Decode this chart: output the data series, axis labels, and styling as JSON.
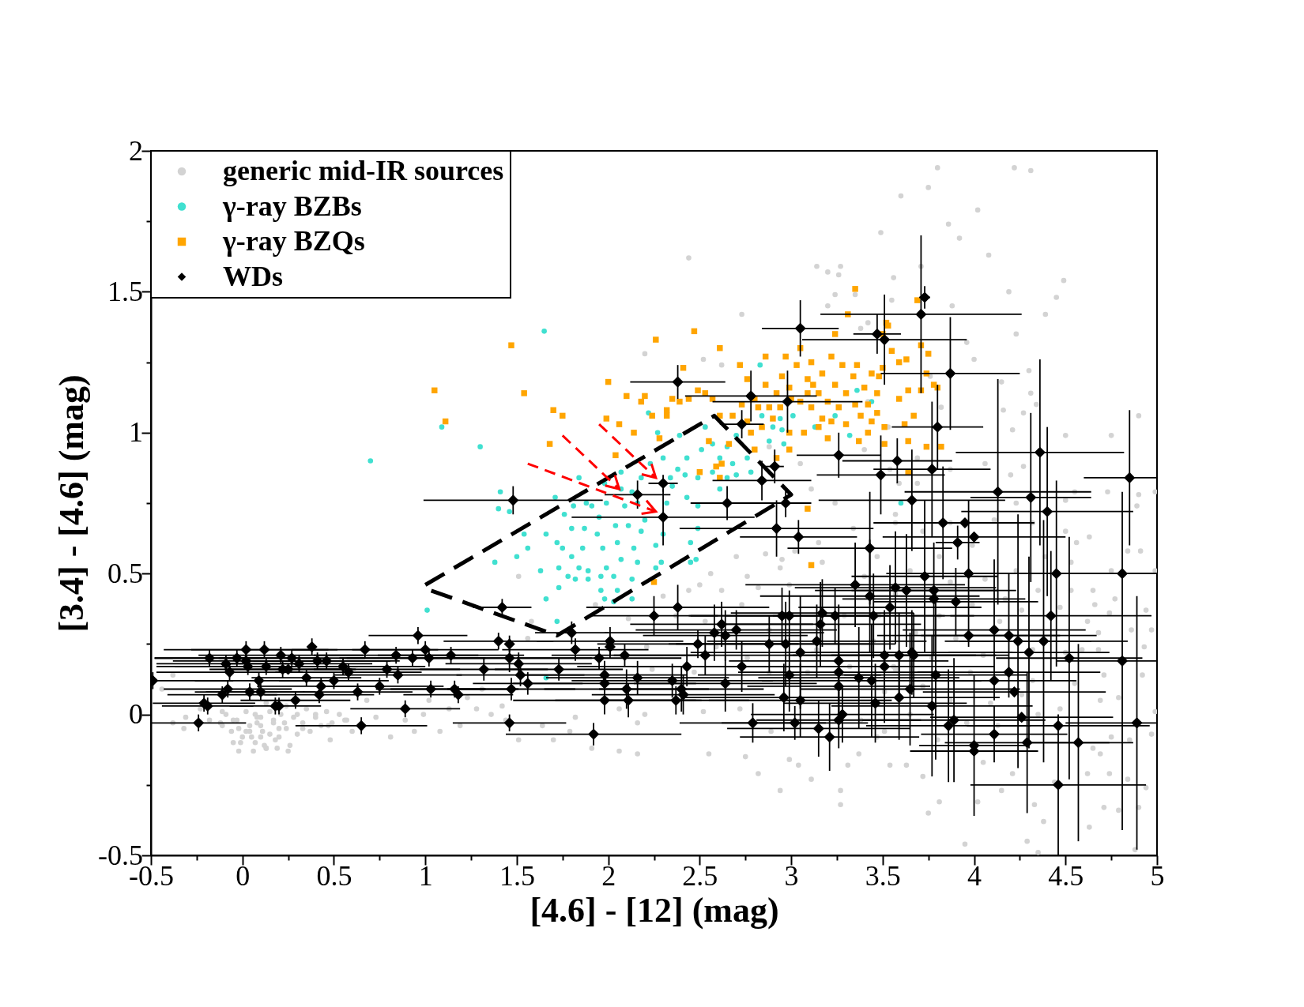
{
  "chart_data": {
    "type": "scatter",
    "xlabel": "[4.6] - [12] (mag)",
    "ylabel": "[3.4] - [4.6] (mag)",
    "xlim": [
      -0.5,
      5
    ],
    "ylim": [
      -0.5,
      2
    ],
    "xticks": [
      -0.5,
      {
        "value": -0.25,
        "label": null
      },
      0,
      {
        "value": 0.25,
        "label": null
      },
      0.5,
      {
        "value": 0.75,
        "label": null
      },
      1,
      {
        "value": 1.25,
        "label": null
      },
      1.5,
      {
        "value": 1.75,
        "label": null
      },
      2,
      {
        "value": 2.25,
        "label": null
      },
      2.5,
      {
        "value": 2.75,
        "label": null
      },
      3,
      {
        "value": 3.25,
        "label": null
      },
      3.5,
      {
        "value": 3.75,
        "label": null
      },
      4,
      {
        "value": 4.25,
        "label": null
      },
      4.5,
      {
        "value": 4.75,
        "label": null
      },
      5
    ],
    "yticks": [
      -0.5,
      {
        "value": -0.25,
        "label": null
      },
      0,
      {
        "value": 0.25,
        "label": null
      },
      0.5,
      {
        "value": 0.75,
        "label": null
      },
      1,
      {
        "value": 1.25,
        "label": null
      },
      1.5,
      {
        "value": 1.75,
        "label": null
      },
      2
    ],
    "legend": "top left",
    "series": [
      {
        "name": "generic mid-IR sources",
        "color": "#d3d3d3",
        "marker": "circle",
        "x": [
          3.8,
          4.22,
          4.31,
          3.75,
          3.6,
          4.02,
          3.86,
          3.49,
          3.92,
          4.49,
          4.45,
          3.71,
          3.56,
          3.55,
          3.88,
          4.23,
          3.96,
          4.0,
          4.3,
          4.15,
          4.31,
          4.34,
          4.9,
          4.16,
          4.27,
          4.21,
          4.75,
          4.5,
          4.73,
          4.9,
          4.99,
          4.89,
          4.63,
          4.55,
          4.5,
          4.39,
          4.19,
          4.08,
          3.26,
          2.44,
          3.14,
          3.35,
          3.42,
          2.73,
          2.2,
          2.52,
          2.62,
          3.2,
          3.27,
          3.24,
          3.2,
          3.38,
          2.7,
          2.86,
          3.02,
          3.17,
          2.56,
          2.76,
          2.94,
          2.44,
          2.62,
          2.82,
          2.99,
          2.3,
          2.5,
          2.37,
          2.73,
          1.93,
          2.11,
          2.53,
          2.88,
          3.29,
          2.21,
          2.59,
          2.76,
          3.14,
          3.45,
          2.24,
          2.47,
          2.88,
          3.09,
          3.32,
          3.57,
          2.06,
          2.2,
          2.52,
          2.72,
          2.89,
          3.38,
          3.47,
          2.06,
          2.16,
          2.55,
          2.75,
          2.99,
          3.04,
          3.37,
          3.54,
          3.63,
          2.82,
          3.11,
          2.94,
          3.27,
          3.27,
          3.31,
          4.91,
          4.84,
          4.56,
          4.99,
          4.75,
          4.65,
          4.77,
          4.66,
          4.74,
          4.94,
          4.97,
          4.86,
          4.62,
          4.68,
          4.93,
          4.68,
          4.59,
          4.71,
          4.92,
          4.79,
          4.69,
          4.99,
          4.75,
          4.97,
          4.85,
          4.65,
          4.69,
          4.74,
          4.84,
          4.94,
          4.62,
          4.71,
          4.9,
          4.63,
          4.79,
          4.88,
          4.33,
          4.38,
          4.29,
          3.95,
          4.35,
          4.02,
          3.75,
          3.81,
          3.72,
          4.15,
          4.21,
          4.44,
          4.05,
          4.13,
          4.35,
          4.47,
          4.09,
          4.26,
          4.55,
          4.32,
          4.5,
          4.32,
          4.14,
          4.26,
          4.47,
          4.53,
          4.35,
          4.17,
          4.06,
          4.23,
          4.39,
          4.53,
          4.5,
          4.32,
          4.11,
          4.23,
          4.2,
          4.06,
          4.27,
          3.87,
          3.69,
          3.54,
          3.87,
          3.72,
          3.57,
          3.99,
          3.81,
          3.47,
          3.65,
          3.87,
          3.57,
          3.99,
          3.81,
          3.48,
          3.68,
          3.9,
          4.05,
          3.77,
          3.56,
          3.98,
          3.72,
          3.51,
          3.87,
          3.65,
          3.96,
          3.51,
          3.8,
          3.4,
          2.95,
          3.15,
          3.34,
          3.24,
          3.11,
          3.59,
          3.05,
          3.4,
          3.69,
          3.82,
          3.76,
          3.53,
          2.53,
          2.88,
          1.51,
          1.58,
          3.57,
          3.42,
          0.1,
          -0.11,
          -0.05,
          0.04,
          0.12,
          0.17,
          0.23,
          0.25,
          0.13,
          0.3,
          -0.01,
          0.07,
          -0.38,
          -0.44,
          -0.38,
          -0.31,
          -0.32,
          -0.11,
          0.33,
          0.4,
          0.47,
          0.56,
          0.48,
          0.6,
          0.73,
          0.81,
          0.68,
          0.89,
          0.99,
          1.08,
          1.19,
          1.28,
          1.36,
          1.31,
          1.42,
          1.51,
          1.7,
          1.56,
          1.79,
          1.82,
          1.91,
          1.64,
          1.44,
          0.94,
          1.13,
          1.23,
          1.02,
          2.16,
          0.05,
          0.15,
          0.2,
          0.08,
          -0.02,
          0.18,
          0.1,
          -0.12,
          -0.09,
          -0.06,
          -0.03,
          0.0,
          0.02,
          0.04,
          0.07,
          0.08,
          0.11,
          0.13,
          0.15,
          0.17,
          0.2,
          0.21,
          0.24,
          0.26,
          0.28,
          0.3,
          0.33,
          0.35,
          0.37,
          0.4,
          0.43,
          0.46,
          0.49,
          0.53,
          0.57,
          0.06,
          -0.05,
          -0.18,
          -0.23,
          0.13,
          0.24,
          0.02,
          0.19,
          -0.02,
          0.1
        ],
        "values": [
          1.94,
          1.94,
          1.93,
          1.87,
          1.84,
          1.79,
          1.74,
          1.71,
          1.69,
          1.54,
          1.48,
          1.59,
          1.55,
          1.47,
          1.45,
          1.35,
          1.32,
          1.26,
          1.22,
          1.18,
          1.14,
          1.1,
          1.06,
          1.08,
          1.07,
          1.01,
          0.99,
          0.99,
          0.79,
          0.78,
          0.79,
          0.74,
          0.63,
          0.79,
          0.76,
          1.42,
          1.5,
          1.63,
          1.56,
          1.62,
          1.59,
          1.49,
          1.39,
          1.42,
          1.28,
          1.26,
          1.24,
          1.57,
          1.59,
          1.49,
          1.45,
          1.37,
          0.56,
          0.57,
          0.58,
          0.54,
          0.5,
          0.49,
          0.52,
          0.44,
          0.44,
          0.45,
          0.46,
          0.42,
          0.46,
          0.35,
          0.39,
          0.39,
          0.34,
          0.33,
          0.3,
          0.35,
          0.24,
          0.24,
          0.2,
          0.23,
          0.26,
          0.16,
          0.15,
          0.15,
          0.15,
          0.17,
          0.16,
          0.02,
          0.0,
          0.01,
          0.02,
          -0.06,
          -0.02,
          -0.08,
          -0.13,
          -0.14,
          -0.14,
          -0.15,
          -0.16,
          -0.18,
          -0.14,
          -0.18,
          -0.18,
          -0.21,
          -0.23,
          -0.27,
          -0.27,
          -0.32,
          -0.18,
          0.58,
          0.58,
          0.61,
          0.51,
          0.51,
          0.44,
          0.41,
          0.39,
          0.36,
          0.37,
          0.3,
          0.3,
          0.33,
          0.29,
          0.24,
          0.23,
          0.23,
          0.14,
          0.14,
          0.06,
          0.05,
          0.01,
          -0.08,
          -0.07,
          -0.09,
          -0.12,
          -0.14,
          -0.21,
          -0.23,
          -0.26,
          -0.21,
          -0.33,
          -0.33,
          -0.4,
          -0.34,
          -0.48,
          -0.32,
          -0.38,
          -0.45,
          -0.46,
          -0.49,
          -0.31,
          -0.35,
          -0.31,
          -0.22,
          -0.27,
          -0.21,
          -0.24,
          -0.17,
          -0.04,
          0.0,
          0.02,
          0.04,
          0.07,
          0.11,
          0.12,
          0.22,
          0.23,
          0.33,
          0.37,
          0.38,
          0.44,
          0.44,
          0.41,
          0.48,
          0.51,
          0.56,
          0.54,
          0.65,
          0.68,
          0.69,
          0.75,
          0.85,
          0.89,
          0.88,
          0.87,
          0.82,
          0.87,
          0.68,
          0.65,
          0.68,
          0.6,
          0.56,
          0.56,
          0.51,
          0.47,
          0.43,
          0.39,
          0.35,
          0.35,
          0.29,
          0.27,
          0.21,
          0.2,
          0.17,
          0.15,
          0.1,
          0.08,
          0.05,
          0.0,
          -0.03,
          -0.06,
          -0.09,
          0.49,
          0.55,
          0.61,
          0.66,
          0.75,
          0.8,
          0.82,
          0.89,
          0.94,
          0.91,
          1.09,
          1.2,
          1.02,
          1.02,
          0.95,
          0.49,
          0.33,
          0.71,
          1.11,
          -0.04,
          -0.04,
          -0.02,
          -0.06,
          -0.11,
          -0.02,
          -0.03,
          -0.13,
          -0.12,
          0.0,
          -0.1,
          0.0,
          -0.03,
          0.09,
          0.14,
          -0.01,
          -0.05,
          0.01,
          -0.05,
          0.0,
          -0.04,
          -0.02,
          -0.09,
          -0.06,
          -0.01,
          -0.08,
          0.05,
          -0.02,
          0.0,
          -0.06,
          -0.04,
          0.02,
          0.0,
          0.09,
          0.03,
          -0.09,
          -0.09,
          0.27,
          -0.06,
          -0.01,
          -0.12,
          -0.04,
          -0.02,
          -0.06,
          0.02,
          0.06,
          0.05,
          -0.03,
          -0.08,
          -0.07,
          -0.05,
          -0.03,
          -0.05,
          -0.09,
          -0.01,
          -0.03,
          0.0,
          -0.06,
          -0.02,
          -0.08,
          0.01,
          -0.04,
          -0.1,
          -0.01,
          -0.06,
          -0.12,
          0.01,
          -0.03,
          -0.08,
          0.0,
          -0.05,
          -0.11,
          -0.01,
          -0.07,
          -0.03,
          0.02,
          -0.06,
          -0.01,
          -0.04,
          0.01,
          -0.03,
          0.0,
          -0.02,
          -0.13,
          -0.1,
          -0.02,
          0.02,
          0.04,
          0.03,
          -0.06,
          -0.12,
          -0.13,
          -0.08
        ]
      },
      {
        "name": "γ-ray BZBs",
        "color": "#40e0d0",
        "marker": "circle",
        "x": [
          1.65,
          1.09,
          1.3,
          1.01,
          0.7,
          1.66,
          3.6,
          3.44,
          1.41,
          1.4,
          1.46,
          1.38,
          1.5,
          1.56,
          1.54,
          1.63,
          1.66,
          1.72,
          1.73,
          1.75,
          1.66,
          1.71,
          1.76,
          1.8,
          1.81,
          1.84,
          1.88,
          1.87,
          1.86,
          1.84,
          1.89,
          1.89,
          1.96,
          1.99,
          1.97,
          1.94,
          1.95,
          1.99,
          1.98,
          2.07,
          2.07,
          2.09,
          2.04,
          2.05,
          2.07,
          2.03,
          1.96,
          2.05,
          1.98,
          2.03,
          2.13,
          2.16,
          2.14,
          2.18,
          2.2,
          2.16,
          2.18,
          2.23,
          2.22,
          2.27,
          2.3,
          2.34,
          2.32,
          2.35,
          2.38,
          2.39,
          2.43,
          2.42,
          2.43,
          2.49,
          2.49,
          2.45,
          2.48,
          2.49,
          2.51,
          2.53,
          2.57,
          2.57,
          2.61,
          2.65,
          2.68,
          2.65,
          2.7,
          2.78,
          2.76,
          2.7,
          2.84,
          2.88,
          2.9,
          2.95,
          3.01,
          2.96,
          3.13,
          3.24,
          3.32,
          3.36,
          2.83,
          2.94,
          2.61,
          2.3,
          2.29,
          2.26,
          1.72,
          1.73,
          1.78,
          1.82,
          1.8,
          1.91,
          2.13,
          2.11,
          2.26,
          2.13,
          2.45
        ],
        "values": [
          1.36,
          1.02,
          0.95,
          0.37,
          0.9,
          0.13,
          0.75,
          1.11,
          0.79,
          0.73,
          0.72,
          0.54,
          0.56,
          0.59,
          0.64,
          0.51,
          0.41,
          0.33,
          0.45,
          0.59,
          0.64,
          0.77,
          0.71,
          0.66,
          0.74,
          0.84,
          0.75,
          0.66,
          0.59,
          0.52,
          0.51,
          0.48,
          0.49,
          0.52,
          0.59,
          0.64,
          0.7,
          0.75,
          0.82,
          0.86,
          0.8,
          0.74,
          0.67,
          0.61,
          0.55,
          0.49,
          0.44,
          0.44,
          0.41,
          0.4,
          0.48,
          0.54,
          0.59,
          0.65,
          0.69,
          0.75,
          0.84,
          0.89,
          1.07,
          1.0,
          0.91,
          0.84,
          0.75,
          0.81,
          0.87,
          0.99,
          0.91,
          0.85,
          0.77,
          0.74,
          0.66,
          0.61,
          0.55,
          0.84,
          0.94,
          1.02,
          0.96,
          0.86,
          0.91,
          0.95,
          0.89,
          0.84,
          0.85,
          0.86,
          0.91,
          0.99,
          1.06,
          0.97,
          1.02,
          1.01,
          1.06,
          0.96,
          1.02,
          1.06,
          0.99,
          1.15,
          1.24,
          1.05,
          0.8,
          0.64,
          0.54,
          0.52,
          0.61,
          0.52,
          0.49,
          0.48,
          0.56,
          0.74,
          0.79,
          0.67,
          0.6,
          0.41,
          0.54
        ]
      },
      {
        "name": "γ-ray BZQs",
        "color": "#ffa500",
        "marker": "square",
        "x": [
          1.47,
          1.05,
          1.11,
          1.54,
          1.7,
          1.75,
          1.68,
          2.0,
          2.26,
          2.47,
          2.61,
          2.41,
          1.99,
          2.06,
          2.1,
          2.2,
          2.18,
          2.14,
          2.04,
          2.24,
          2.28,
          2.32,
          2.35,
          2.39,
          2.32,
          2.44,
          2.49,
          2.53,
          2.57,
          2.61,
          2.55,
          2.5,
          2.59,
          2.66,
          2.62,
          2.61,
          2.25,
          3.11,
          3.09,
          3.35,
          3.31,
          3.24,
          3.5,
          3.53,
          3.71,
          3.75,
          3.63,
          3.55,
          3.78,
          3.67,
          3.59,
          3.64,
          3.5,
          3.36,
          3.44,
          3.51,
          3.42,
          3.51,
          3.37,
          3.64,
          3.74,
          3.69,
          3.52,
          3.59,
          3.74,
          3.8,
          3.71,
          3.62,
          3.64,
          3.82,
          3.47,
          3.48,
          2.72,
          2.76,
          2.8,
          2.86,
          2.88,
          2.92,
          2.95,
          2.99,
          3.03,
          3.05,
          3.09,
          3.11,
          3.15,
          3.17,
          3.2,
          3.24,
          3.28,
          3.3,
          3.34,
          3.38,
          3.4,
          3.44,
          3.47,
          3.22,
          3.15,
          3.07,
          2.99,
          2.84,
          2.76,
          2.68,
          2.73,
          2.82,
          2.94,
          3.11,
          3.26,
          3.09,
          2.92,
          2.8,
          2.99,
          3.17,
          2.97,
          2.86,
          3.05,
          3.22,
          2.9,
          3.0,
          3.12,
          3.35,
          2.78,
          3.2,
          3.42,
          3.3
        ],
        "values": [
          1.31,
          1.15,
          1.04,
          1.14,
          1.08,
          1.06,
          0.96,
          1.18,
          1.33,
          1.36,
          1.3,
          1.23,
          1.05,
          1.03,
          1.13,
          1.13,
          1.11,
          1.0,
          0.92,
          1.06,
          0.98,
          1.08,
          1.12,
          1.11,
          1.06,
          1.12,
          1.15,
          1.14,
          1.12,
          1.06,
          0.97,
          0.86,
          0.88,
          0.96,
          0.89,
          0.84,
          0.47,
          0.53,
          0.73,
          1.51,
          1.42,
          1.35,
          1.35,
          1.38,
          1.31,
          1.28,
          1.26,
          1.29,
          1.17,
          1.06,
          1.12,
          1.15,
          1.23,
          1.24,
          1.04,
          1.02,
          1.1,
          0.96,
          0.97,
          0.86,
          0.95,
          1.47,
          1.39,
          1.25,
          1.21,
          1.16,
          1.15,
          1.03,
          0.97,
          0.95,
          1.07,
          1.2,
          1.24,
          1.19,
          1.12,
          1.17,
          1.09,
          1.14,
          1.2,
          1.16,
          1.24,
          1.11,
          1.19,
          1.25,
          1.14,
          1.21,
          1.11,
          1.17,
          1.24,
          1.14,
          1.2,
          1.06,
          1.16,
          1.21,
          1.14,
          1.04,
          1.02,
          1.0,
          1.0,
          1.02,
          1.04,
          1.06,
          1.1,
          1.09,
          1.09,
          1.09,
          1.09,
          1.14,
          0.91,
          0.94,
          0.94,
          1.05,
          1.27,
          1.27,
          1.3,
          1.27,
          1.05,
          1.12,
          1.17,
          1.1,
          1.0,
          0.98,
          1.0,
          1.03
        ]
      },
      {
        "type": "line",
        "color": "#000000",
        "line_style": "dashed",
        "x": [
          1.0,
          2.58,
          3.0,
          1.72,
          1.03
        ],
        "values": [
          0.46,
          1.06,
          0.78,
          0.28,
          0.44
        ]
      },
      {
        "name": "WDs",
        "color": "#000000",
        "marker": "diamond",
        "x": [
          -0.49,
          -0.24,
          -0.21,
          -0.19,
          -0.18,
          -0.11,
          -0.09,
          -0.08,
          -0.07,
          -0.03,
          0.02,
          0.02,
          0.03,
          0.04,
          0.09,
          0.1,
          0.12,
          0.13,
          0.18,
          0.2,
          0.21,
          0.22,
          0.25,
          0.27,
          0.29,
          0.31,
          0.35,
          0.38,
          0.41,
          0.42,
          0.43,
          0.46,
          0.5,
          0.55,
          0.58,
          0.63,
          0.65,
          0.67,
          0.75,
          0.79,
          0.84,
          0.85,
          0.89,
          0.93,
          0.96,
          1.0,
          1.02,
          1.03,
          1.14,
          1.16,
          1.18,
          1.32,
          1.4,
          1.42,
          1.46,
          1.46,
          1.47,
          1.46,
          1.51,
          1.52,
          1.56,
          1.73,
          1.8,
          1.82,
          1.92,
          1.95,
          2.25,
          2.38,
          2.01,
          2.01,
          2.09,
          1.98,
          1.98,
          1.98,
          2.1,
          2.11,
          2.16,
          2.35,
          2.4,
          2.41,
          2.37,
          2.43,
          2.49,
          2.53,
          2.58,
          2.62,
          2.64,
          2.7,
          2.73,
          2.64,
          2.79,
          2.88,
          2.95,
          2.99,
          2.97,
          2.96,
          2.99,
          3.05,
          3.05,
          3.02,
          3.14,
          3.16,
          3.17,
          3.24,
          3.15,
          3.21,
          3.26,
          3.26,
          3.26,
          3.28,
          3.26,
          3.35,
          3.37,
          3.43,
          3.44,
          3.45,
          3.46,
          3.51,
          3.54,
          3.57,
          3.59,
          3.63,
          3.59,
          3.65,
          3.66,
          3.73,
          3.97,
          4.45,
          4.81,
          3.78,
          3.78,
          3.9,
          4.42,
          4.11,
          4.19,
          4.24,
          4.38,
          3.97,
          4.3,
          4.52,
          4.81,
          3.51,
          3.67,
          4.19,
          4.11,
          4.22,
          3.79,
          3.77,
          3.89,
          3.86,
          4.26,
          4.46,
          4.11,
          4.29,
          4.57,
          4.89,
          4.0,
          4.0,
          4.46,
          1.48,
          2.16,
          2.3,
          2.3,
          2.38,
          2.78,
          2.98,
          2.73,
          3.05,
          3.47,
          3.51,
          3.71,
          3.73,
          3.87,
          3.8,
          2.91,
          2.84,
          2.97,
          2.65,
          2.92,
          3.04,
          3.26,
          3.58,
          3.49,
          3.77,
          3.66,
          4.13,
          4.31,
          4.36,
          4.85,
          4.4,
          3.83,
          3.95,
          4.0,
          3.91,
          3.43
        ],
        "values": [
          0.12,
          -0.03,
          0.04,
          0.03,
          0.2,
          0.07,
          0.18,
          0.09,
          0.15,
          0.2,
          0.23,
          0.19,
          0.17,
          0.08,
          0.12,
          0.08,
          0.23,
          0.17,
          0.03,
          0.03,
          0.21,
          0.16,
          0.16,
          0.2,
          0.05,
          0.18,
          0.13,
          0.24,
          0.19,
          0.07,
          0.1,
          0.19,
          0.12,
          0.17,
          0.15,
          0.08,
          -0.04,
          0.23,
          0.1,
          0.16,
          0.21,
          0.14,
          0.02,
          0.2,
          0.28,
          0.23,
          0.2,
          0.09,
          0.21,
          0.09,
          0.07,
          0.16,
          0.26,
          0.38,
          0.25,
          0.2,
          0.09,
          -0.03,
          0.18,
          0.14,
          0.11,
          0.16,
          0.29,
          0.23,
          -0.07,
          0.2,
          0.35,
          0.38,
          0.26,
          0.24,
          0.21,
          0.14,
          0.11,
          0.05,
          0.09,
          0.05,
          0.13,
          0.12,
          0.09,
          0.07,
          0.05,
          0.17,
          0.25,
          0.21,
          0.29,
          0.32,
          0.28,
          0.3,
          0.17,
          0.11,
          -0.03,
          0.25,
          0.35,
          0.35,
          0.25,
          0.06,
          0.14,
          0.22,
          0.05,
          -0.03,
          0.26,
          0.32,
          0.36,
          0.35,
          -0.05,
          -0.08,
          0.19,
          0.15,
          0.1,
          0.0,
          -0.02,
          0.46,
          0.13,
          0.42,
          0.12,
          0.35,
          0.04,
          0.17,
          0.38,
          0.45,
          0.21,
          0.44,
          0.06,
          0.09,
          0.22,
          0.49,
          0.5,
          0.5,
          0.5,
          0.44,
          0.41,
          0.4,
          0.35,
          0.3,
          0.28,
          0.26,
          0.26,
          0.28,
          0.22,
          0.2,
          0.19,
          0.21,
          0.21,
          0.15,
          0.12,
          0.08,
          0.14,
          0.03,
          -0.02,
          -0.04,
          -0.01,
          -0.04,
          -0.07,
          -0.1,
          -0.1,
          -0.03,
          -0.11,
          -0.13,
          -0.25,
          0.76,
          0.78,
          0.82,
          0.7,
          1.18,
          1.13,
          1.11,
          1.03,
          1.37,
          1.35,
          1.33,
          1.42,
          1.48,
          1.21,
          1.02,
          0.88,
          0.83,
          0.75,
          0.75,
          0.66,
          0.63,
          0.92,
          0.9,
          0.85,
          0.87,
          0.76,
          0.79,
          0.77,
          0.93,
          0.84,
          0.72,
          0.68,
          0.68,
          0.63,
          0.61,
          0.59
        ],
        "xerrors": [
          [
            -0.5,
            -0.05
          ],
          0.26,
          0.28,
          0.25,
          0.3,
          0.3,
          0.38,
          0.35,
          0.4,
          0.45,
          0.45,
          0.4,
          0.5,
          0.3,
          0.35,
          0.3,
          0.4,
          0.5,
          0.25,
          null,
          0.45,
          0.4,
          0.35,
          0.4,
          0.3,
          0.4,
          0.3,
          null,
          0.4,
          0.3,
          0.35,
          0.4,
          0.3,
          0.45,
          0.4,
          0.3,
          0.36,
          0.4,
          0.35,
          0.4,
          0.45,
          0.35,
          0.3,
          0.4,
          0.27,
          0.4,
          0.45,
          0.3,
          0.4,
          0.35,
          0.3,
          0.35,
          0.3,
          0.16,
          null,
          0.45,
          0.35,
          0.31,
          0.4,
          0.35,
          0.3,
          0.35,
          0.2,
          0.4,
          0.48,
          0.45,
          0.35,
          0.5,
          0.4,
          null,
          0.4,
          0.45,
          0.5,
          0.5,
          0.45,
          0.4,
          0.5,
          0.55,
          0.45,
          0.5,
          0.4,
          0.6,
          0.55,
          0.5,
          0.6,
          0.5,
          0.45,
          0.55,
          0.6,
          0.5,
          0.4,
          0.55,
          0.5,
          0.55,
          0.6,
          0.55,
          0.5,
          0.6,
          0.5,
          0.4,
          0.6,
          0.55,
          0.5,
          0.6,
          0.5,
          0.49,
          0.6,
          0.55,
          0.5,
          0.5,
          0.45,
          0.6,
          0.55,
          0.6,
          0.6,
          0.55,
          0.5,
          0.6,
          0.5,
          0.55,
          0.6,
          0.5,
          0.55,
          0.6,
          0.55,
          0.4,
          0.45,
          0.55,
          [
            4.41,
            5
          ],
          0.45,
          0.5,
          0.45,
          0.55,
          0.5,
          0.48,
          0.4,
          0.46,
          0.5,
          0.44,
          0.4,
          [
            4.45,
            5
          ],
          0.5,
          0.45,
          0.5,
          0.45,
          0.5,
          0.5,
          0.55,
          0.5,
          0.45,
          0.5,
          0.5,
          0.4,
          0.45,
          0.3,
          [
            4.5,
            5
          ],
          0.3,
          0.35,
          0.48,
          0.49,
          0.18,
          0.08,
          0.5,
          0.26,
          0.36,
          0.41,
          0.12,
          0.21,
          0.13,
          0.45,
          0.55,
          0.03,
          0.38,
          0.25,
          0.05,
          0.27,
          0.14,
          0.2,
          0.53,
          0.32,
          0.23,
          0.3,
          0.35,
          0.32,
          0.51,
          0.51,
          0.33,
          0.46,
          [
            4.6,
            5
          ],
          0.47,
          0.38,
          0.38,
          0.5,
          0.12,
          0.45
        ],
        "errors": [
          0.03,
          0.03,
          0.03,
          0.03,
          0.03,
          0.03,
          0.03,
          0.03,
          0.03,
          0.03,
          0.03,
          0.03,
          0.03,
          0.03,
          0.03,
          0.03,
          0.03,
          0.03,
          0.03,
          0.03,
          0.03,
          0.03,
          null,
          0.03,
          0.03,
          0.03,
          0.03,
          0.03,
          0.03,
          0.03,
          0.03,
          0.03,
          0.03,
          0.03,
          0.03,
          0.03,
          0.03,
          0.03,
          0.03,
          0.03,
          0.03,
          0.03,
          0.03,
          0.03,
          0.03,
          0.03,
          0.03,
          0.03,
          0.03,
          0.03,
          0.03,
          0.04,
          0.03,
          0.03,
          0.03,
          0.05,
          0.04,
          0.03,
          0.04,
          0.04,
          0.04,
          0.04,
          0.04,
          0.04,
          0.04,
          0.04,
          0.07,
          0.08,
          0.05,
          0.04,
          0.04,
          0.05,
          0.06,
          0.05,
          0.07,
          0.06,
          0.06,
          0.06,
          0.08,
          0.07,
          0.05,
          0.07,
          0.05,
          0.07,
          0.1,
          0.08,
          0.09,
          0.07,
          0.09,
          0.1,
          0.07,
          0.1,
          0.1,
          0.09,
          0.15,
          0.12,
          0.13,
          0.2,
          0.13,
          0.06,
          0.13,
          0.15,
          0.12,
          0.1,
          0.1,
          0.12,
          0.2,
          0.17,
          0.15,
          0.1,
          0.1,
          0.15,
          0.18,
          0.2,
          0.2,
          0.15,
          0.14,
          0.2,
          0.15,
          0.2,
          0.15,
          0.2,
          0.15,
          0.2,
          0.15,
          0.27,
          0.26,
          0.33,
          null,
          null,
          0.2,
          0.12,
          0.23,
          0.25,
          0.22,
          0.45,
          0.43,
          null,
          0.34,
          0.43,
          0.6,
          0.15,
          0.15,
          null,
          null,
          null,
          0.3,
          0.25,
          0.22,
          0.2,
          null,
          null,
          0.1,
          0.25,
          0.35,
          0.45,
          0.25,
          null,
          0.25,
          0.05,
          0.05,
          0.03,
          0.1,
          0.06,
          0.09,
          0.11,
          0.05,
          0.1,
          0.07,
          0.16,
          0.28,
          0.04,
          0.2,
          0.15,
          0.06,
          0.07,
          0.05,
          0.06,
          0.1,
          0.06,
          0.08,
          0.08,
          0.14,
          0.24,
          0.18,
          0.4,
          0.3,
          0.33,
          0.24,
          0.3,
          0.2,
          null,
          null,
          0.06,
          0.2
        ]
      }
    ]
  }
}
